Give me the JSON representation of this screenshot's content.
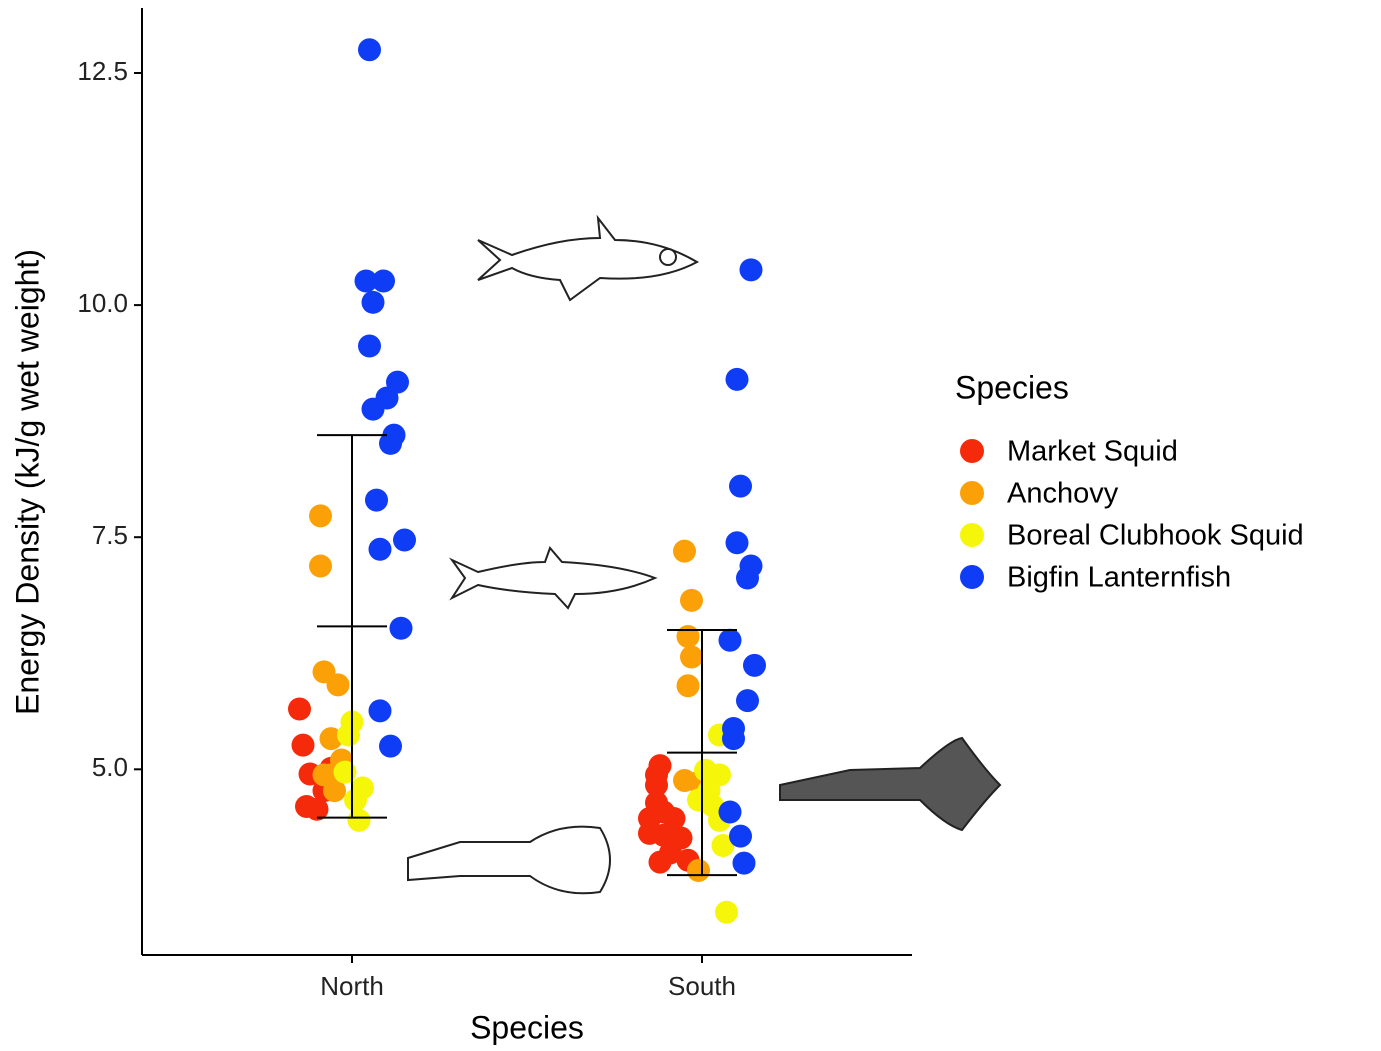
{
  "chart_data": {
    "type": "scatter",
    "x_axis_label": "Species",
    "y_axis_label": "Energy Density (kJ/g wet weight)",
    "legend_title": "Species",
    "legend_position": "right",
    "xlim": [
      0.4,
      2.6
    ],
    "xticks": [
      {
        "value": 1,
        "label": "North"
      },
      {
        "value": 2,
        "label": "South"
      }
    ],
    "ylim": [
      3.0,
      13.2
    ],
    "yticks": [
      {
        "value": 5,
        "label": "5.0"
      },
      7.5,
      {
        "value": 10,
        "label": "10.0"
      },
      12.5
    ],
    "grid": false,
    "series": [
      {
        "name": "Market Squid",
        "color": "#f52a0a",
        "x": [
          0.85,
          0.86,
          0.88,
          0.87,
          0.9,
          0.94,
          0.92,
          1.88,
          1.87,
          1.87,
          1.89,
          1.85,
          1.92,
          1.85,
          1.89,
          1.94,
          1.91,
          1.88,
          1.96,
          1.87
        ],
        "values": [
          5.65,
          5.26,
          4.95,
          4.6,
          4.57,
          5.01,
          4.77,
          5.04,
          4.83,
          4.64,
          4.54,
          4.47,
          4.47,
          4.31,
          4.29,
          4.26,
          4.1,
          4.0,
          4.02,
          4.94
        ]
      },
      {
        "name": "Anchovy",
        "color": "#fba107",
        "x": [
          0.91,
          0.91,
          0.92,
          0.96,
          0.94,
          0.97,
          0.94,
          0.95,
          0.92,
          1.95,
          1.97,
          1.96,
          1.97,
          1.96,
          1.95,
          1.99,
          1.99
        ],
        "values": [
          7.73,
          7.19,
          6.05,
          5.91,
          5.33,
          5.1,
          4.94,
          4.77,
          4.94,
          7.35,
          6.82,
          6.43,
          6.21,
          5.9,
          4.88,
          3.91,
          4.86
        ]
      },
      {
        "name": "Boreal Clubhook Squid",
        "color": "#f6f60a",
        "x": [
          1.0,
          0.99,
          0.98,
          1.03,
          1.01,
          1.02,
          2.05,
          2.01,
          2.05,
          2.02,
          2.03,
          2.05,
          2.06,
          2.07,
          1.99
        ],
        "values": [
          5.51,
          5.37,
          4.97,
          4.8,
          4.67,
          4.45,
          5.37,
          4.99,
          4.94,
          4.77,
          4.61,
          4.45,
          4.18,
          3.46,
          4.67
        ]
      },
      {
        "name": "Bigfin Lanternfish",
        "color": "#0f3cf5",
        "x": [
          1.05,
          1.04,
          1.09,
          1.06,
          1.05,
          1.13,
          1.1,
          1.06,
          1.12,
          1.11,
          1.07,
          1.15,
          1.08,
          1.14,
          1.08,
          1.11,
          2.14,
          2.1,
          2.11,
          2.1,
          2.14,
          2.13,
          2.08,
          2.15,
          2.13,
          2.09,
          2.09,
          2.08,
          2.11,
          2.12
        ],
        "values": [
          12.75,
          10.26,
          10.26,
          10.03,
          9.56,
          9.17,
          9.0,
          8.88,
          8.6,
          8.51,
          7.9,
          7.47,
          7.37,
          6.52,
          5.63,
          5.25,
          10.38,
          9.2,
          8.05,
          7.44,
          7.19,
          7.06,
          6.39,
          6.12,
          5.74,
          5.44,
          5.33,
          4.54,
          4.28,
          3.99
        ]
      }
    ],
    "error_bars": {
      "x": [
        1,
        2
      ],
      "mean": [
        6.54,
        5.18
      ],
      "lower": [
        4.48,
        3.86
      ],
      "upper": [
        8.6,
        6.5
      ]
    }
  }
}
